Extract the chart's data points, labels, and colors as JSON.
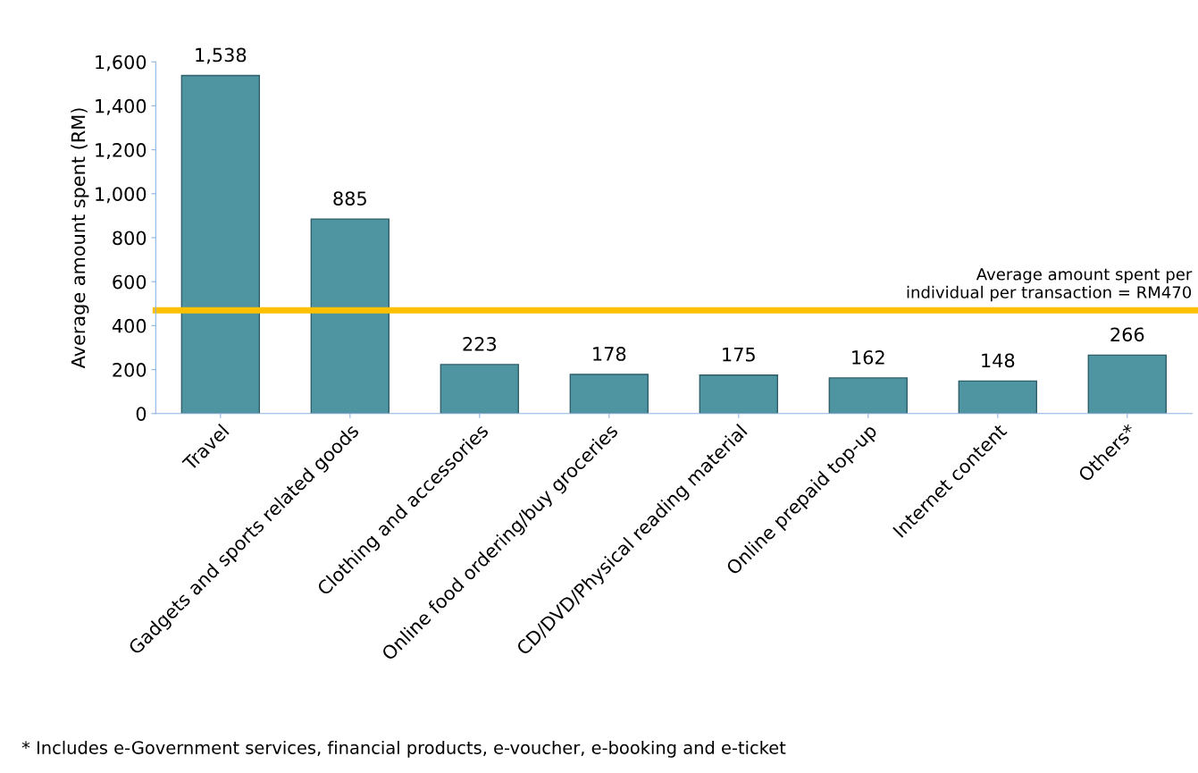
{
  "chart_data": {
    "type": "bar",
    "ylabel": "Average amount spent (RM)",
    "categories": [
      "Travel",
      "Gadgets and sports related goods",
      "Clothing and accessories",
      "Online food ordering/buy groceries",
      "CD/DVD/Physical reading material",
      "Online prepaid top-up",
      "Internet content",
      "Others*"
    ],
    "values": [
      1538,
      885,
      223,
      178,
      175,
      162,
      148,
      266
    ],
    "value_labels": [
      "1,538",
      "885",
      "223",
      "178",
      "175",
      "162",
      "148",
      "266"
    ],
    "color": "#4f94a1",
    "ylim": [
      0,
      1600
    ],
    "yticks": [
      {
        "value": 0,
        "label": "0"
      },
      {
        "value": 200,
        "label": "200"
      },
      {
        "value": 400,
        "label": "400"
      },
      {
        "value": 600,
        "label": "600"
      },
      {
        "value": 800,
        "label": "800"
      },
      {
        "value": 1000,
        "label": "1,000"
      },
      {
        "value": 1200,
        "label": "1,200"
      },
      {
        "value": 1400,
        "label": "1,400"
      },
      {
        "value": 1600,
        "label": "1,600"
      }
    ],
    "ref_lines": [
      {
        "axis": "y",
        "value": 470,
        "label": "Average amount spent per\nindividual per transaction = RM470",
        "color": "#ffc000"
      }
    ],
    "annotations": [
      "* Includes e-Government services, financial products, e-voucher, e-booking and e-ticket"
    ],
    "grid": false,
    "legend": false
  }
}
